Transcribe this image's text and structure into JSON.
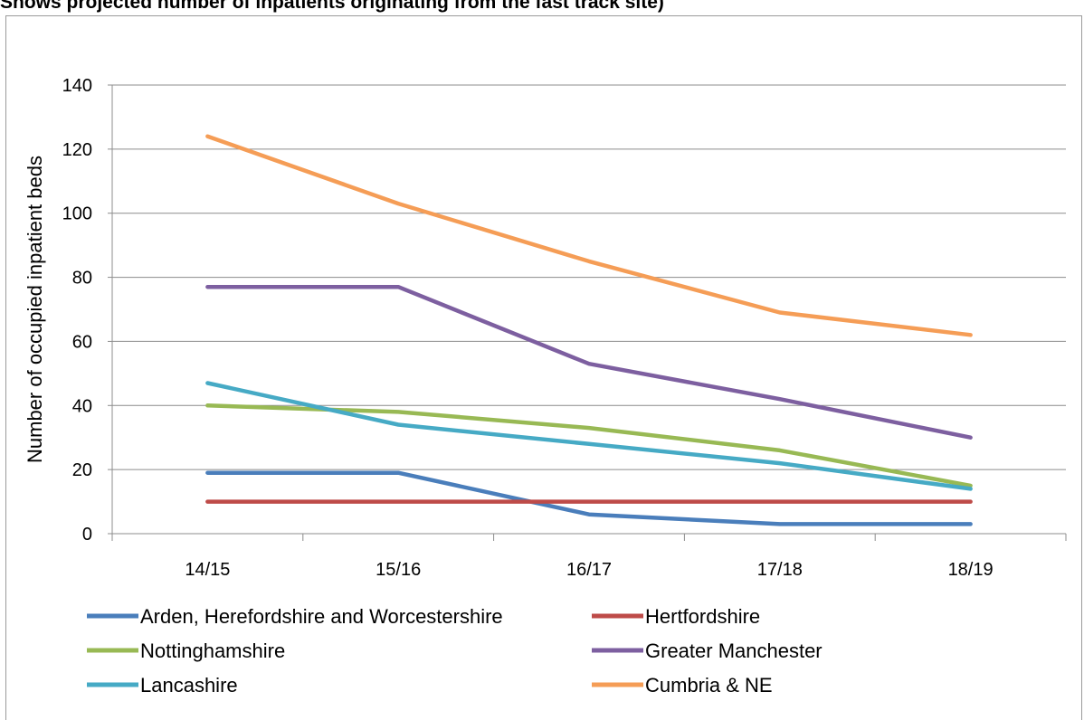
{
  "title": "Shows projected number of inpatients originating from the fast track site)",
  "chart_data": {
    "type": "line",
    "title": "Shows projected number of inpatients originating from the fast track site)",
    "xlabel": "",
    "ylabel": "Number of occupied inpatient beds",
    "categories": [
      "14/15",
      "15/16",
      "16/17",
      "17/18",
      "18/19"
    ],
    "ylim": [
      0,
      140
    ],
    "yticks": [
      0,
      20,
      40,
      60,
      80,
      100,
      120,
      140
    ],
    "grid": "horizontal",
    "legend_position": "bottom",
    "series": [
      {
        "name": "Arden, Herefordshire and Worcestershire",
        "color": "#4a7ebb",
        "values": [
          19,
          19,
          6,
          3,
          3
        ]
      },
      {
        "name": "Hertfordshire",
        "color": "#be4b48",
        "values": [
          10,
          10,
          10,
          10,
          10
        ]
      },
      {
        "name": "Nottinghamshire",
        "color": "#98b954",
        "values": [
          40,
          38,
          33,
          26,
          15
        ]
      },
      {
        "name": "Greater Manchester",
        "color": "#7d5fa0",
        "values": [
          77,
          77,
          53,
          42,
          30
        ]
      },
      {
        "name": "Lancashire",
        "color": "#46aac5",
        "values": [
          47,
          34,
          28,
          22,
          14
        ]
      },
      {
        "name": "Cumbria & NE",
        "color": "#f59d56",
        "values": [
          124,
          103,
          85,
          69,
          62
        ]
      }
    ]
  }
}
